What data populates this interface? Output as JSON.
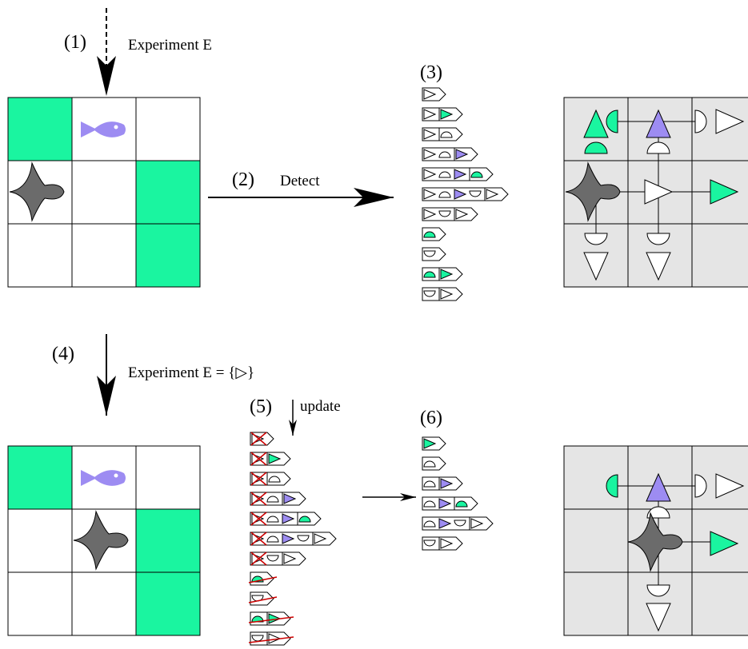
{
  "steps": [
    {
      "label": "(1)",
      "text": "Experiment E"
    },
    {
      "label": "(2)",
      "text": "Detect"
    },
    {
      "label": "(3)"
    },
    {
      "label": "(4)",
      "text": "Experiment E = {▷}"
    },
    {
      "label": "(5)",
      "text": "update"
    },
    {
      "label": "(6)"
    }
  ]
}
